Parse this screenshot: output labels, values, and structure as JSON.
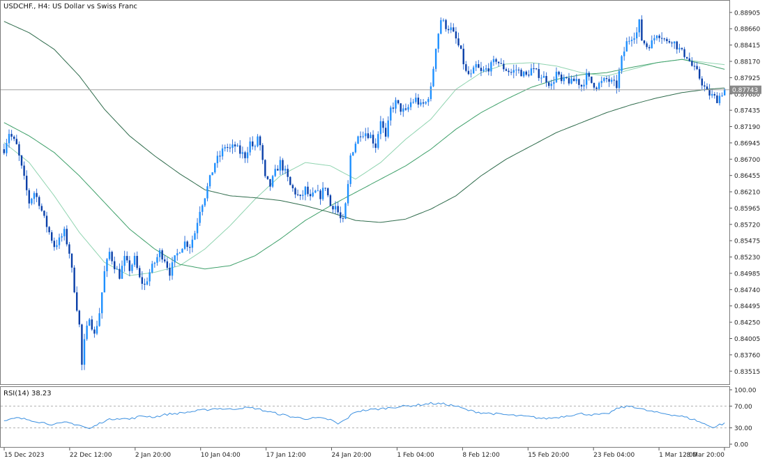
{
  "header": {
    "symbol_text": "USDCHF., H4:  US Dollar vs Swiss Franc"
  },
  "price_axis": {
    "labels": [
      "0.88905",
      "0.88660",
      "0.88415",
      "0.88170",
      "0.87925",
      "0.87680",
      "0.87435",
      "0.87190",
      "0.86945",
      "0.86700",
      "0.86455",
      "0.86210",
      "0.85965",
      "0.85720",
      "0.85475",
      "0.85230",
      "0.84985",
      "0.84740",
      "0.84495",
      "0.84250",
      "0.84005",
      "0.83760",
      "0.83515"
    ],
    "current_price_label": "0.87743"
  },
  "rsi_panel": {
    "label": "RSI(14) 38.23",
    "levels": [
      "100.00",
      "70.00",
      "30.00",
      "0.00"
    ]
  },
  "time_axis": {
    "labels": [
      "15 Dec 2023",
      "22 Dec 12:00",
      "2 Jan 20:00",
      "10 Jan 04:00",
      "17 Jan 12:00",
      "24 Jan 20:00",
      "1 Feb 04:00",
      "8 Feb 12:00",
      "15 Feb 20:00",
      "23 Feb 04:00",
      "1 Mar 12:00",
      "8 Mar 20:00"
    ]
  },
  "colors": {
    "bull_candle": "#1E90FF",
    "bear_candle": "#0A3FA8",
    "wick": "#2E6FD8",
    "ma_fast": "#90D4B0",
    "ma_mid": "#3FA06A",
    "ma_slow": "#2E6B4B",
    "rsi_line": "#3A8FE0",
    "grid_border": "#7A7A7A",
    "current_price_line": "#A0A0A0"
  },
  "chart_data": {
    "type": "candlestick",
    "symbol": "USDCHF.",
    "timeframe": "H4",
    "ylim": [
      0.8335,
      0.8905
    ],
    "current_price": 0.87743,
    "close_path": [
      [
        0,
        0.8685
      ],
      [
        2,
        0.871
      ],
      [
        5,
        0.869
      ],
      [
        8,
        0.864
      ],
      [
        10,
        0.8605
      ],
      [
        12,
        0.862
      ],
      [
        14,
        0.8605
      ],
      [
        16,
        0.858
      ],
      [
        18,
        0.856
      ],
      [
        20,
        0.854
      ],
      [
        22,
        0.8548
      ],
      [
        24,
        0.856
      ],
      [
        26,
        0.853
      ],
      [
        28,
        0.8475
      ],
      [
        30,
        0.842
      ],
      [
        31,
        0.836
      ],
      [
        32,
        0.8395
      ],
      [
        34,
        0.8435
      ],
      [
        36,
        0.8405
      ],
      [
        38,
        0.844
      ],
      [
        40,
        0.85
      ],
      [
        42,
        0.853
      ],
      [
        44,
        0.851
      ],
      [
        46,
        0.8495
      ],
      [
        48,
        0.852
      ],
      [
        50,
        0.8505
      ],
      [
        52,
        0.852
      ],
      [
        54,
        0.849
      ],
      [
        56,
        0.848
      ],
      [
        58,
        0.85
      ],
      [
        60,
        0.8515
      ],
      [
        62,
        0.853
      ],
      [
        64,
        0.852
      ],
      [
        66,
        0.85
      ],
      [
        68,
        0.852
      ],
      [
        70,
        0.8535
      ],
      [
        72,
        0.8545
      ],
      [
        74,
        0.854
      ],
      [
        76,
        0.856
      ],
      [
        78,
        0.8595
      ],
      [
        80,
        0.8615
      ],
      [
        82,
        0.864
      ],
      [
        84,
        0.8665
      ],
      [
        86,
        0.8675
      ],
      [
        88,
        0.869
      ],
      [
        90,
        0.8685
      ],
      [
        92,
        0.869
      ],
      [
        94,
        0.868
      ],
      [
        96,
        0.8675
      ],
      [
        98,
        0.8695
      ],
      [
        100,
        0.8685
      ],
      [
        101,
        0.8705
      ],
      [
        102,
        0.869
      ],
      [
        104,
        0.864
      ],
      [
        106,
        0.863
      ],
      [
        108,
        0.865
      ],
      [
        110,
        0.8665
      ],
      [
        112,
        0.865
      ],
      [
        114,
        0.863
      ],
      [
        116,
        0.862
      ],
      [
        118,
        0.861
      ],
      [
        120,
        0.8625
      ],
      [
        122,
        0.861
      ],
      [
        124,
        0.862
      ],
      [
        126,
        0.8615
      ],
      [
        128,
        0.863
      ],
      [
        130,
        0.86
      ],
      [
        132,
        0.86
      ],
      [
        134,
        0.858
      ],
      [
        135,
        0.8575
      ],
      [
        136,
        0.86
      ],
      [
        137,
        0.863
      ],
      [
        138,
        0.8675
      ],
      [
        140,
        0.8695
      ],
      [
        142,
        0.871
      ],
      [
        144,
        0.871
      ],
      [
        146,
        0.8705
      ],
      [
        148,
        0.869
      ],
      [
        150,
        0.873
      ],
      [
        152,
        0.87
      ],
      [
        154,
        0.8745
      ],
      [
        156,
        0.8755
      ],
      [
        158,
        0.8745
      ],
      [
        160,
        0.874
      ],
      [
        162,
        0.8755
      ],
      [
        164,
        0.876
      ],
      [
        166,
        0.875
      ],
      [
        168,
        0.8755
      ],
      [
        170,
        0.8775
      ],
      [
        172,
        0.884
      ],
      [
        174,
        0.888
      ],
      [
        176,
        0.887
      ],
      [
        178,
        0.8865
      ],
      [
        180,
        0.885
      ],
      [
        182,
        0.883
      ],
      [
        184,
        0.88
      ],
      [
        186,
        0.8795
      ],
      [
        188,
        0.881
      ],
      [
        190,
        0.88
      ],
      [
        192,
        0.8805
      ],
      [
        194,
        0.881
      ],
      [
        196,
        0.882
      ],
      [
        198,
        0.881
      ],
      [
        200,
        0.8805
      ],
      [
        202,
        0.88
      ],
      [
        204,
        0.8805
      ],
      [
        206,
        0.88
      ],
      [
        208,
        0.8795
      ],
      [
        210,
        0.8805
      ],
      [
        212,
        0.88
      ],
      [
        214,
        0.8795
      ],
      [
        216,
        0.879
      ],
      [
        218,
        0.878
      ],
      [
        220,
        0.88
      ],
      [
        222,
        0.8785
      ],
      [
        224,
        0.879
      ],
      [
        226,
        0.8785
      ],
      [
        228,
        0.879
      ],
      [
        230,
        0.878
      ],
      [
        232,
        0.8795
      ],
      [
        234,
        0.8785
      ],
      [
        236,
        0.878
      ],
      [
        238,
        0.8785
      ],
      [
        240,
        0.879
      ],
      [
        242,
        0.8785
      ],
      [
        244,
        0.878
      ],
      [
        246,
        0.882
      ],
      [
        248,
        0.8845
      ],
      [
        250,
        0.8855
      ],
      [
        252,
        0.886
      ],
      [
        253,
        0.8875
      ],
      [
        254,
        0.885
      ],
      [
        256,
        0.884
      ],
      [
        258,
        0.8845
      ],
      [
        260,
        0.886
      ],
      [
        262,
        0.8855
      ],
      [
        264,
        0.8845
      ],
      [
        266,
        0.885
      ],
      [
        268,
        0.884
      ],
      [
        270,
        0.883
      ],
      [
        272,
        0.8825
      ],
      [
        274,
        0.881
      ],
      [
        276,
        0.88
      ],
      [
        278,
        0.8785
      ],
      [
        280,
        0.877
      ],
      [
        282,
        0.8765
      ],
      [
        284,
        0.876
      ],
      [
        286,
        0.877
      ],
      [
        287,
        0.8775
      ]
    ],
    "moving_averages": [
      {
        "key": "ma_fast",
        "points": [
          [
            0,
            0.8695
          ],
          [
            10,
            0.8665
          ],
          [
            20,
            0.8615
          ],
          [
            30,
            0.856
          ],
          [
            40,
            0.8515
          ],
          [
            50,
            0.8495
          ],
          [
            60,
            0.85
          ],
          [
            70,
            0.851
          ],
          [
            80,
            0.8535
          ],
          [
            90,
            0.857
          ],
          [
            100,
            0.861
          ],
          [
            110,
            0.8645
          ],
          [
            120,
            0.8665
          ],
          [
            130,
            0.866
          ],
          [
            140,
            0.864
          ],
          [
            150,
            0.8665
          ],
          [
            160,
            0.87
          ],
          [
            170,
            0.873
          ],
          [
            180,
            0.8775
          ],
          [
            190,
            0.88
          ],
          [
            200,
            0.8813
          ],
          [
            210,
            0.8815
          ],
          [
            220,
            0.881
          ],
          [
            230,
            0.88
          ],
          [
            240,
            0.8795
          ],
          [
            250,
            0.8805
          ],
          [
            260,
            0.8815
          ],
          [
            270,
            0.882
          ],
          [
            280,
            0.8815
          ],
          [
            287,
            0.8812
          ]
        ]
      },
      {
        "key": "ma_mid",
        "points": [
          [
            0,
            0.8725
          ],
          [
            10,
            0.8705
          ],
          [
            20,
            0.868
          ],
          [
            30,
            0.8645
          ],
          [
            40,
            0.8605
          ],
          [
            50,
            0.8565
          ],
          [
            60,
            0.8535
          ],
          [
            70,
            0.8512
          ],
          [
            80,
            0.8505
          ],
          [
            90,
            0.851
          ],
          [
            100,
            0.8525
          ],
          [
            110,
            0.855
          ],
          [
            120,
            0.8578
          ],
          [
            130,
            0.86
          ],
          [
            140,
            0.862
          ],
          [
            150,
            0.864
          ],
          [
            160,
            0.866
          ],
          [
            170,
            0.8685
          ],
          [
            180,
            0.8715
          ],
          [
            190,
            0.874
          ],
          [
            200,
            0.876
          ],
          [
            210,
            0.8778
          ],
          [
            220,
            0.879
          ],
          [
            230,
            0.8797
          ],
          [
            240,
            0.88
          ],
          [
            250,
            0.8808
          ],
          [
            260,
            0.8815
          ],
          [
            270,
            0.882
          ],
          [
            280,
            0.8812
          ],
          [
            287,
            0.8805
          ]
        ]
      },
      {
        "key": "ma_slow",
        "points": [
          [
            0,
            0.8877
          ],
          [
            10,
            0.886
          ],
          [
            20,
            0.8835
          ],
          [
            30,
            0.8795
          ],
          [
            40,
            0.8745
          ],
          [
            50,
            0.8705
          ],
          [
            60,
            0.8675
          ],
          [
            70,
            0.8648
          ],
          [
            80,
            0.8624
          ],
          [
            90,
            0.8615
          ],
          [
            100,
            0.8612
          ],
          [
            110,
            0.8608
          ],
          [
            120,
            0.86
          ],
          [
            130,
            0.859
          ],
          [
            140,
            0.8578
          ],
          [
            150,
            0.8575
          ],
          [
            160,
            0.858
          ],
          [
            170,
            0.8595
          ],
          [
            180,
            0.8615
          ],
          [
            190,
            0.8645
          ],
          [
            200,
            0.867
          ],
          [
            210,
            0.869
          ],
          [
            220,
            0.871
          ],
          [
            230,
            0.8725
          ],
          [
            240,
            0.874
          ],
          [
            250,
            0.8752
          ],
          [
            260,
            0.8762
          ],
          [
            270,
            0.877
          ],
          [
            280,
            0.8775
          ],
          [
            287,
            0.8777
          ]
        ]
      }
    ],
    "rsi": {
      "period": 14,
      "value": 38.23,
      "levels": [
        70,
        30
      ],
      "ylim": [
        0,
        100
      ],
      "points": [
        [
          0,
          42
        ],
        [
          5,
          48
        ],
        [
          10,
          45
        ],
        [
          15,
          40
        ],
        [
          20,
          36
        ],
        [
          25,
          40
        ],
        [
          30,
          35
        ],
        [
          34,
          28
        ],
        [
          36,
          33
        ],
        [
          40,
          43
        ],
        [
          45,
          48
        ],
        [
          50,
          46
        ],
        [
          55,
          52
        ],
        [
          60,
          50
        ],
        [
          65,
          55
        ],
        [
          70,
          57
        ],
        [
          75,
          60
        ],
        [
          80,
          63
        ],
        [
          85,
          66
        ],
        [
          90,
          64
        ],
        [
          95,
          67
        ],
        [
          100,
          66
        ],
        [
          105,
          60
        ],
        [
          110,
          55
        ],
        [
          115,
          50
        ],
        [
          120,
          47
        ],
        [
          125,
          48
        ],
        [
          130,
          45
        ],
        [
          133,
          37
        ],
        [
          136,
          45
        ],
        [
          140,
          60
        ],
        [
          145,
          63
        ],
        [
          150,
          65
        ],
        [
          155,
          68
        ],
        [
          160,
          70
        ],
        [
          165,
          72
        ],
        [
          170,
          75
        ],
        [
          175,
          74
        ],
        [
          180,
          70
        ],
        [
          185,
          62
        ],
        [
          190,
          58
        ],
        [
          195,
          56
        ],
        [
          200,
          54
        ],
        [
          205,
          52
        ],
        [
          210,
          50
        ],
        [
          215,
          47
        ],
        [
          220,
          49
        ],
        [
          225,
          53
        ],
        [
          230,
          56
        ],
        [
          235,
          54
        ],
        [
          240,
          55
        ],
        [
          245,
          67
        ],
        [
          250,
          70
        ],
        [
          255,
          63
        ],
        [
          260,
          58
        ],
        [
          265,
          55
        ],
        [
          270,
          51
        ],
        [
          275,
          45
        ],
        [
          280,
          35
        ],
        [
          283,
          31
        ],
        [
          285,
          36
        ],
        [
          287,
          38
        ]
      ]
    }
  }
}
